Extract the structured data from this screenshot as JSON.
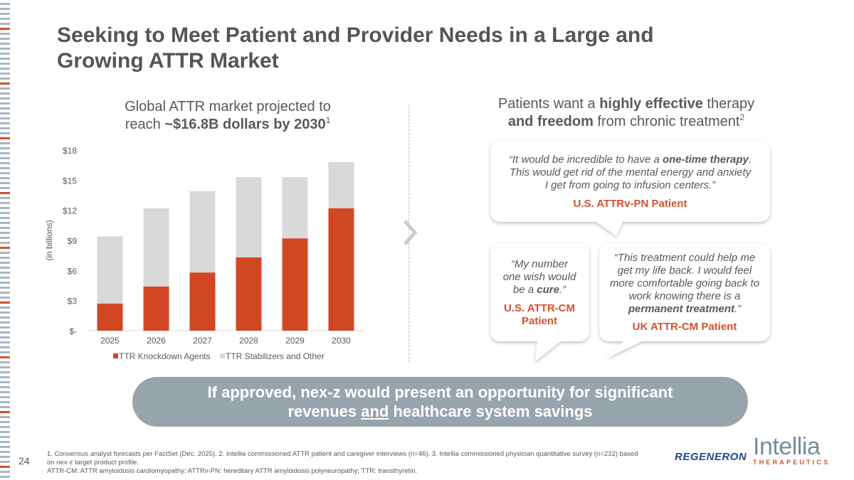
{
  "slide": {
    "title_line1": "Seeking to Meet Patient and Provider Needs in a Large and",
    "title_line2": "Growing ATTR Market",
    "page_number": "24"
  },
  "left": {
    "heading_line1": "Global ATTR market projected to",
    "heading_line2_prefix": "reach ",
    "heading_line2_bold": "~$16.8B dollars by 2030",
    "heading_sup": "1"
  },
  "chart_data": {
    "type": "bar",
    "stacked": true,
    "categories": [
      "2025",
      "2026",
      "2027",
      "2028",
      "2029",
      "2030"
    ],
    "series": [
      {
        "name": "TTR Knockdown Agents",
        "color": "#d14724",
        "values": [
          2.7,
          4.4,
          5.8,
          7.3,
          9.2,
          12.2
        ]
      },
      {
        "name": "TTR Stabilizers and Other",
        "color": "#d9d9d9",
        "values": [
          6.7,
          7.8,
          8.1,
          8.0,
          6.1,
          4.6
        ]
      }
    ],
    "ylabel": "(in billions)",
    "ylim": [
      0,
      18
    ],
    "yticks": [
      0,
      3,
      6,
      9,
      12,
      15,
      18
    ],
    "ytick_labels": [
      "$-",
      "$3",
      "$6",
      "$9",
      "$12",
      "$15",
      "$18"
    ],
    "legend_position": "bottom"
  },
  "right": {
    "heading_line1_prefix": "Patients want a ",
    "heading_line1_bold": "highly effective",
    "heading_line1_suffix": " therapy",
    "heading_line2_bold": "and freedom",
    "heading_line2_suffix": " from chronic treatment",
    "heading_sup": "2"
  },
  "quotes": [
    {
      "l1a": "“It would be incredible to have a ",
      "l1b": "one-time therapy",
      "l1c": ".",
      "l2": "This would get rid of the mental energy and anxiety",
      "l3": "I get from going to infusion centers.”",
      "attribution": "U.S. ATTRv-PN Patient"
    },
    {
      "l1": "“My number",
      "l2": "one wish would",
      "l3a": "be a ",
      "l3b": "cure",
      "l3c": ".”",
      "attribution_l1": "U.S. ATTR-CM",
      "attribution_l2": "Patient"
    },
    {
      "l1": "“This treatment could help me",
      "l2": "get my life back. I would feel",
      "l3": "more comfortable going back to",
      "l4": "work knowing there is a",
      "l5a": "permanent treatment",
      "l5b": ".”",
      "attribution": "UK ATTR-CM Patient"
    }
  ],
  "banner": {
    "line1": "If approved, nex-z would present an opportunity for significant",
    "line2a": "revenues ",
    "line2b": "and",
    "line2c": " healthcare system savings"
  },
  "footnote": {
    "line1": "1. Consensus analyst forecasts per FactSet (Dec. 2025). 2. Intellia commissioned ATTR patient and caregiver interviews (n=46). 3. Intellia commissioned physician quantitative survey (n=232) based on nex-z target product profile.",
    "line2": "ATTR-CM: ATTR amyloidosis cardiomyopathy; ATTRv-PN: hereditary ATTR amyloidosis polyneuropathy; TTR: transthyretin."
  },
  "logos": {
    "regeneron": "REGENERON",
    "intellia_name": "Intellia",
    "intellia_sub": "THERAPEUTICS"
  },
  "colors": {
    "accent": "#d14724",
    "gray_bar": "#d9d9d9",
    "banner": "#98a4ab"
  }
}
